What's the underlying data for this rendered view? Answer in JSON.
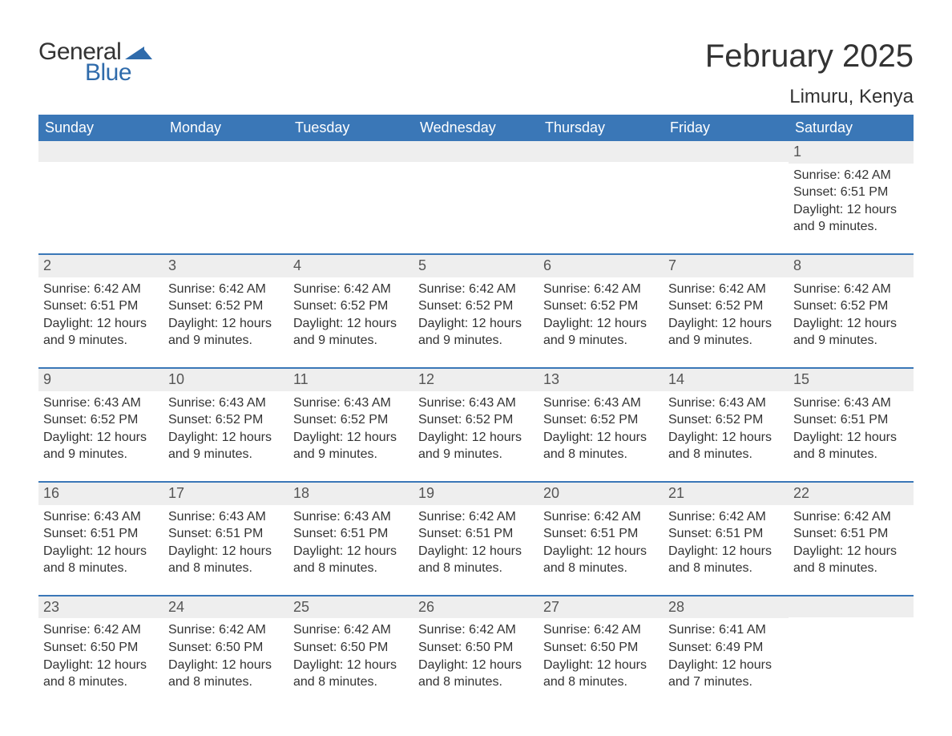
{
  "logo": {
    "text1": "General",
    "text2": "Blue",
    "mark_color": "#2f6bab"
  },
  "title": "February 2025",
  "location": "Limuru, Kenya",
  "colors": {
    "header_bg": "#3a77b7",
    "header_text": "#ffffff",
    "band_bg": "#eeeeee",
    "row_border": "#3a77b7",
    "text": "#333333",
    "daynum_text": "#555555",
    "background": "#ffffff"
  },
  "layout": {
    "columns": 7,
    "font_family": "Arial, Helvetica, sans-serif",
    "title_fontsize": 40,
    "location_fontsize": 24,
    "weekday_fontsize": 18,
    "daynum_fontsize": 18,
    "body_fontsize": 16
  },
  "weekdays": [
    "Sunday",
    "Monday",
    "Tuesday",
    "Wednesday",
    "Thursday",
    "Friday",
    "Saturday"
  ],
  "weeks": [
    [
      null,
      null,
      null,
      null,
      null,
      null,
      {
        "n": "1",
        "sunrise": "6:42 AM",
        "sunset": "6:51 PM",
        "daylight": "12 hours and 9 minutes."
      }
    ],
    [
      {
        "n": "2",
        "sunrise": "6:42 AM",
        "sunset": "6:51 PM",
        "daylight": "12 hours and 9 minutes."
      },
      {
        "n": "3",
        "sunrise": "6:42 AM",
        "sunset": "6:52 PM",
        "daylight": "12 hours and 9 minutes."
      },
      {
        "n": "4",
        "sunrise": "6:42 AM",
        "sunset": "6:52 PM",
        "daylight": "12 hours and 9 minutes."
      },
      {
        "n": "5",
        "sunrise": "6:42 AM",
        "sunset": "6:52 PM",
        "daylight": "12 hours and 9 minutes."
      },
      {
        "n": "6",
        "sunrise": "6:42 AM",
        "sunset": "6:52 PM",
        "daylight": "12 hours and 9 minutes."
      },
      {
        "n": "7",
        "sunrise": "6:42 AM",
        "sunset": "6:52 PM",
        "daylight": "12 hours and 9 minutes."
      },
      {
        "n": "8",
        "sunrise": "6:42 AM",
        "sunset": "6:52 PM",
        "daylight": "12 hours and 9 minutes."
      }
    ],
    [
      {
        "n": "9",
        "sunrise": "6:43 AM",
        "sunset": "6:52 PM",
        "daylight": "12 hours and 9 minutes."
      },
      {
        "n": "10",
        "sunrise": "6:43 AM",
        "sunset": "6:52 PM",
        "daylight": "12 hours and 9 minutes."
      },
      {
        "n": "11",
        "sunrise": "6:43 AM",
        "sunset": "6:52 PM",
        "daylight": "12 hours and 9 minutes."
      },
      {
        "n": "12",
        "sunrise": "6:43 AM",
        "sunset": "6:52 PM",
        "daylight": "12 hours and 9 minutes."
      },
      {
        "n": "13",
        "sunrise": "6:43 AM",
        "sunset": "6:52 PM",
        "daylight": "12 hours and 8 minutes."
      },
      {
        "n": "14",
        "sunrise": "6:43 AM",
        "sunset": "6:52 PM",
        "daylight": "12 hours and 8 minutes."
      },
      {
        "n": "15",
        "sunrise": "6:43 AM",
        "sunset": "6:51 PM",
        "daylight": "12 hours and 8 minutes."
      }
    ],
    [
      {
        "n": "16",
        "sunrise": "6:43 AM",
        "sunset": "6:51 PM",
        "daylight": "12 hours and 8 minutes."
      },
      {
        "n": "17",
        "sunrise": "6:43 AM",
        "sunset": "6:51 PM",
        "daylight": "12 hours and 8 minutes."
      },
      {
        "n": "18",
        "sunrise": "6:43 AM",
        "sunset": "6:51 PM",
        "daylight": "12 hours and 8 minutes."
      },
      {
        "n": "19",
        "sunrise": "6:42 AM",
        "sunset": "6:51 PM",
        "daylight": "12 hours and 8 minutes."
      },
      {
        "n": "20",
        "sunrise": "6:42 AM",
        "sunset": "6:51 PM",
        "daylight": "12 hours and 8 minutes."
      },
      {
        "n": "21",
        "sunrise": "6:42 AM",
        "sunset": "6:51 PM",
        "daylight": "12 hours and 8 minutes."
      },
      {
        "n": "22",
        "sunrise": "6:42 AM",
        "sunset": "6:51 PM",
        "daylight": "12 hours and 8 minutes."
      }
    ],
    [
      {
        "n": "23",
        "sunrise": "6:42 AM",
        "sunset": "6:50 PM",
        "daylight": "12 hours and 8 minutes."
      },
      {
        "n": "24",
        "sunrise": "6:42 AM",
        "sunset": "6:50 PM",
        "daylight": "12 hours and 8 minutes."
      },
      {
        "n": "25",
        "sunrise": "6:42 AM",
        "sunset": "6:50 PM",
        "daylight": "12 hours and 8 minutes."
      },
      {
        "n": "26",
        "sunrise": "6:42 AM",
        "sunset": "6:50 PM",
        "daylight": "12 hours and 8 minutes."
      },
      {
        "n": "27",
        "sunrise": "6:42 AM",
        "sunset": "6:50 PM",
        "daylight": "12 hours and 8 minutes."
      },
      {
        "n": "28",
        "sunrise": "6:41 AM",
        "sunset": "6:49 PM",
        "daylight": "12 hours and 7 minutes."
      },
      null
    ]
  ],
  "labels": {
    "sunrise": "Sunrise:",
    "sunset": "Sunset:",
    "daylight": "Daylight:"
  }
}
